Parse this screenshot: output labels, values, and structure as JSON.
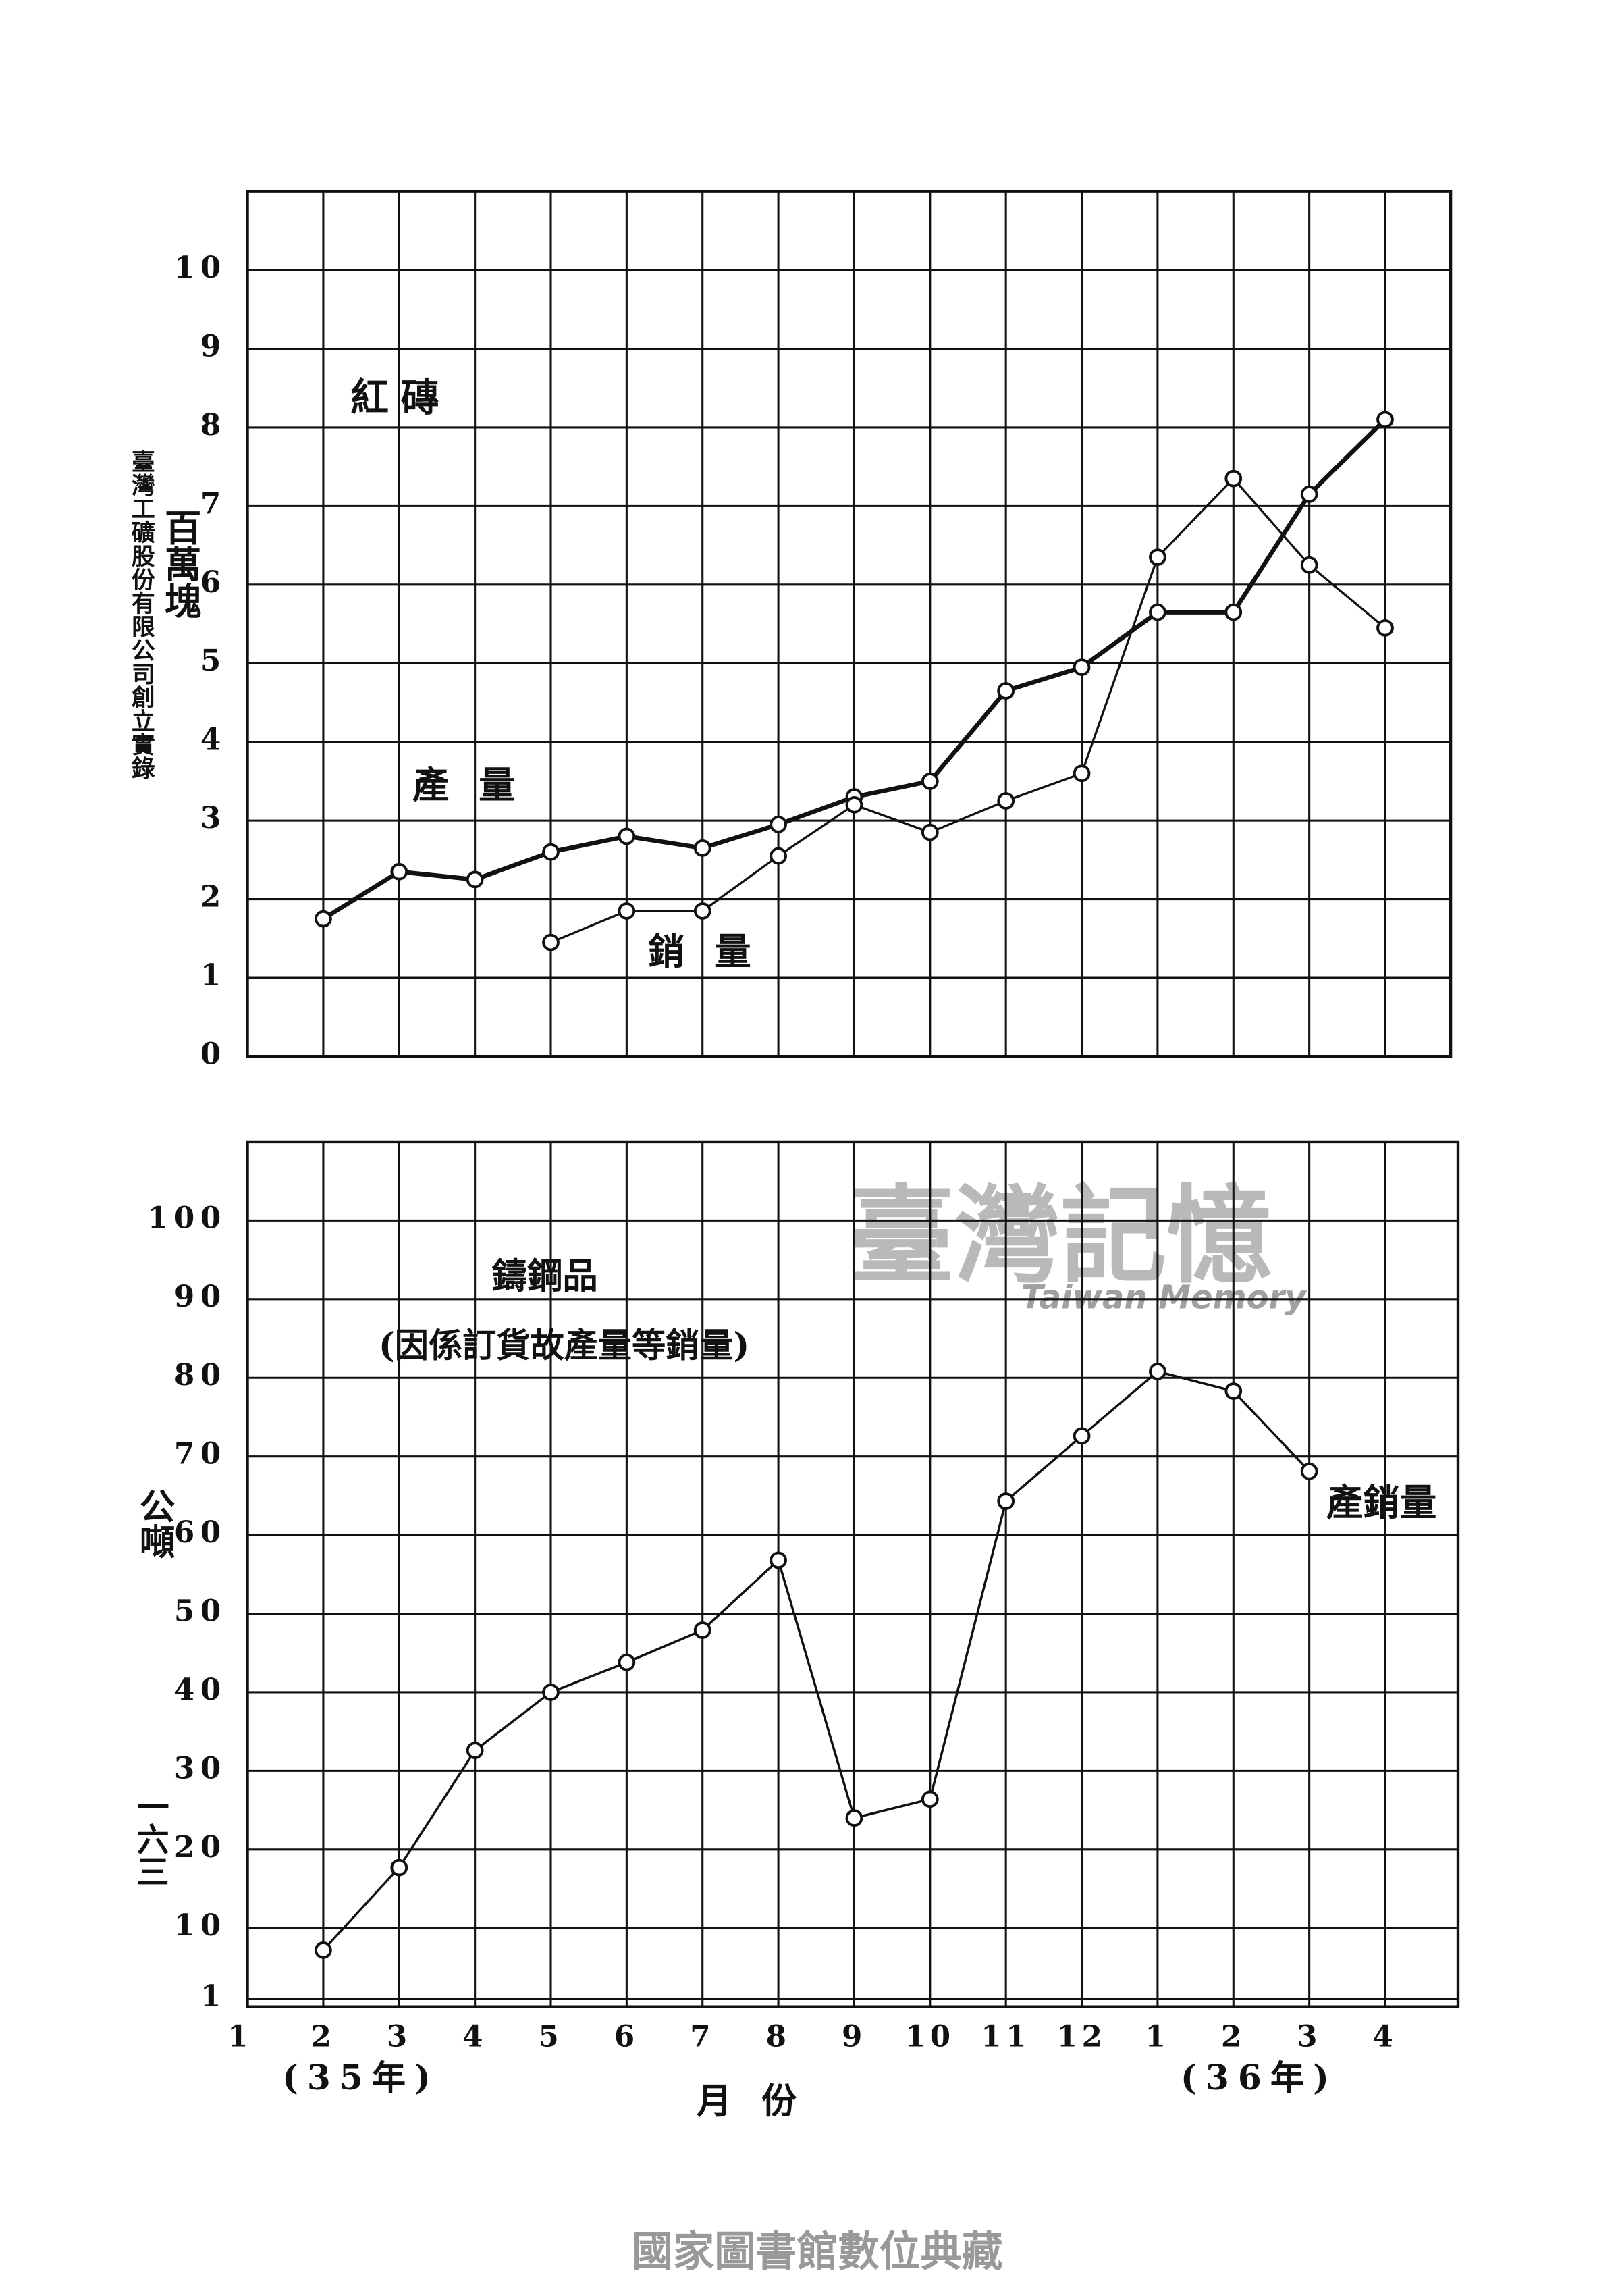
{
  "side_text": "臺灣工礦股份有限公司創立實錄",
  "page_number": "一六三",
  "watermark": {
    "title": "臺灣記憶",
    "subtitle": "Taiwan Memory"
  },
  "footer": "國家圖書館數位典藏",
  "chart_data": [
    {
      "type": "line",
      "title": "紅磚",
      "y_label": "百萬塊",
      "ylim": [
        0,
        11
      ],
      "yticks": [
        0,
        1,
        2,
        3,
        4,
        5,
        6,
        7,
        8,
        9,
        10
      ],
      "grid": true,
      "series": [
        {
          "name": "產量",
          "color": "#111111",
          "values": [
            null,
            1.75,
            2.35,
            2.25,
            2.6,
            2.8,
            2.65,
            2.95,
            3.3,
            3.5,
            4.65,
            4.95,
            5.65,
            5.65,
            7.15,
            8.1
          ]
        },
        {
          "name": "銷量",
          "color": "#111111",
          "values": [
            null,
            null,
            null,
            null,
            1.45,
            1.85,
            1.85,
            2.55,
            3.2,
            2.85,
            3.25,
            3.6,
            6.35,
            7.35,
            6.25,
            5.45
          ]
        }
      ]
    },
    {
      "type": "line",
      "title": "鑄鋼品",
      "subtitle": "(因係訂貨故產量等銷量)",
      "y_label": "公噸",
      "x_label": "月份",
      "annotations": [
        "(35年)",
        "(36年)"
      ],
      "categories": [
        "1",
        "2",
        "3",
        "4",
        "5",
        "6",
        "7",
        "8",
        "9",
        "10",
        "11",
        "12",
        "1",
        "2",
        "3",
        "4"
      ],
      "ylim": [
        0,
        110
      ],
      "yticks": [
        1,
        10,
        20,
        30,
        40,
        50,
        60,
        70,
        80,
        90,
        100
      ],
      "grid": true,
      "series": [
        {
          "name": "產銷量",
          "color": "#111111",
          "values": [
            null,
            7.2,
            17.7,
            32.6,
            40,
            43.8,
            47.9,
            56.8,
            24,
            26.4,
            64.3,
            72.6,
            80.8,
            78.3,
            68.1,
            null
          ]
        }
      ]
    }
  ]
}
